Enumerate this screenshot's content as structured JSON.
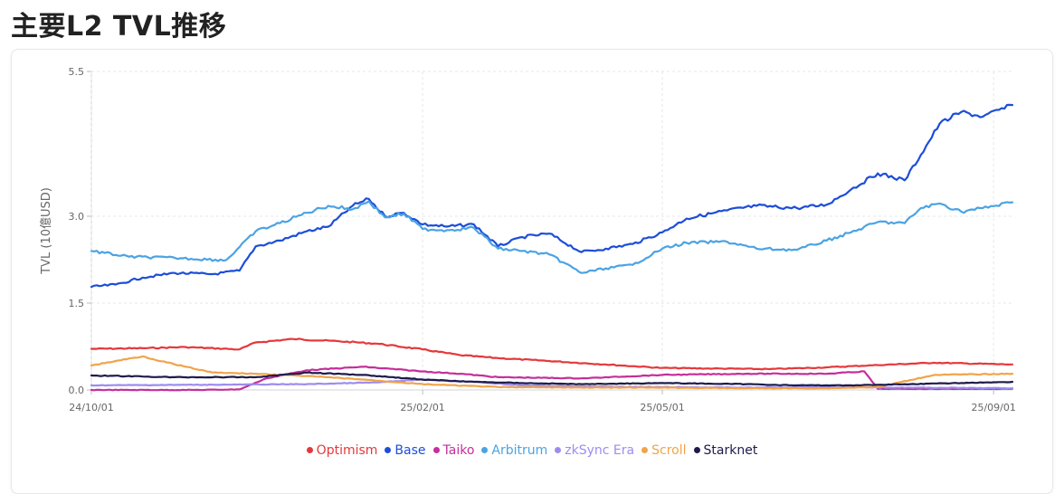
{
  "page": {
    "title": "主要L2 TVL推移"
  },
  "chart_data": {
    "type": "line",
    "title": "",
    "xlabel": "",
    "ylabel": "TVL (10億USD)",
    "xlim": [
      "2024-10-01",
      "2025-09-08"
    ],
    "ylim": [
      0,
      5.5
    ],
    "yticks": [
      0,
      1.5,
      3.0,
      5.5
    ],
    "ytick_labels": [
      "0.0",
      "1.5",
      "3.0",
      "5.5"
    ],
    "xticks": [
      "2024-10-01",
      "2025-02-01",
      "2025-05-01",
      "2025-09-01"
    ],
    "xtick_labels": [
      "24/10/01",
      "25/02/01",
      "25/05/01",
      "25/09/01"
    ],
    "grid": true,
    "legend_position": "bottom",
    "series": [
      {
        "name": "Optimism",
        "color": "#e5383b",
        "points": [
          [
            "2024-10-01",
            0.71
          ],
          [
            "2024-10-20",
            0.72
          ],
          [
            "2024-11-05",
            0.74
          ],
          [
            "2024-11-25",
            0.7
          ],
          [
            "2024-12-01",
            0.82
          ],
          [
            "2024-12-15",
            0.88
          ],
          [
            "2025-01-01",
            0.84
          ],
          [
            "2025-01-15",
            0.8
          ],
          [
            "2025-02-01",
            0.7
          ],
          [
            "2025-02-15",
            0.6
          ],
          [
            "2025-03-01",
            0.55
          ],
          [
            "2025-03-20",
            0.5
          ],
          [
            "2025-04-10",
            0.44
          ],
          [
            "2025-05-01",
            0.38
          ],
          [
            "2025-05-20",
            0.37
          ],
          [
            "2025-06-10",
            0.36
          ],
          [
            "2025-07-01",
            0.39
          ],
          [
            "2025-07-20",
            0.43
          ],
          [
            "2025-08-10",
            0.47
          ],
          [
            "2025-09-08",
            0.44
          ]
        ]
      },
      {
        "name": "Base",
        "color": "#1d4ed8",
        "points": [
          [
            "2024-10-01",
            1.78
          ],
          [
            "2024-10-10",
            1.82
          ],
          [
            "2024-10-20",
            1.94
          ],
          [
            "2024-11-01",
            2.02
          ],
          [
            "2024-11-15",
            2.0
          ],
          [
            "2024-11-25",
            2.06
          ],
          [
            "2024-12-01",
            2.48
          ],
          [
            "2024-12-10",
            2.58
          ],
          [
            "2024-12-20",
            2.74
          ],
          [
            "2024-12-28",
            2.82
          ],
          [
            "2025-01-06",
            3.18
          ],
          [
            "2025-01-12",
            3.3
          ],
          [
            "2025-01-18",
            3.0
          ],
          [
            "2025-01-25",
            3.06
          ],
          [
            "2025-02-01",
            2.86
          ],
          [
            "2025-02-10",
            2.82
          ],
          [
            "2025-02-20",
            2.86
          ],
          [
            "2025-03-01",
            2.48
          ],
          [
            "2025-03-10",
            2.64
          ],
          [
            "2025-03-20",
            2.7
          ],
          [
            "2025-04-01",
            2.38
          ],
          [
            "2025-04-10",
            2.44
          ],
          [
            "2025-04-20",
            2.52
          ],
          [
            "2025-05-01",
            2.72
          ],
          [
            "2025-05-10",
            2.96
          ],
          [
            "2025-05-25",
            3.1
          ],
          [
            "2025-06-05",
            3.18
          ],
          [
            "2025-06-20",
            3.14
          ],
          [
            "2025-07-01",
            3.2
          ],
          [
            "2025-07-10",
            3.46
          ],
          [
            "2025-07-20",
            3.74
          ],
          [
            "2025-07-30",
            3.62
          ],
          [
            "2025-08-05",
            4.06
          ],
          [
            "2025-08-12",
            4.6
          ],
          [
            "2025-08-20",
            4.8
          ],
          [
            "2025-08-28",
            4.72
          ],
          [
            "2025-09-08",
            4.92
          ]
        ]
      },
      {
        "name": "Taiko",
        "color": "#c42f9a",
        "points": [
          [
            "2024-10-01",
            0.0
          ],
          [
            "2024-11-10",
            0.0
          ],
          [
            "2024-11-25",
            0.01
          ],
          [
            "2024-12-05",
            0.2
          ],
          [
            "2024-12-20",
            0.34
          ],
          [
            "2025-01-10",
            0.4
          ],
          [
            "2025-02-01",
            0.32
          ],
          [
            "2025-02-15",
            0.28
          ],
          [
            "2025-03-01",
            0.22
          ],
          [
            "2025-04-01",
            0.2
          ],
          [
            "2025-05-01",
            0.26
          ],
          [
            "2025-06-01",
            0.28
          ],
          [
            "2025-07-01",
            0.28
          ],
          [
            "2025-07-15",
            0.32
          ],
          [
            "2025-07-20",
            0.02
          ],
          [
            "2025-09-08",
            0.02
          ]
        ]
      },
      {
        "name": "Arbitrum",
        "color": "#4ba3e3",
        "points": [
          [
            "2024-10-01",
            2.4
          ],
          [
            "2024-10-15",
            2.3
          ],
          [
            "2024-11-01",
            2.28
          ],
          [
            "2024-11-20",
            2.24
          ],
          [
            "2024-12-01",
            2.74
          ],
          [
            "2024-12-10",
            2.88
          ],
          [
            "2024-12-20",
            3.06
          ],
          [
            "2024-12-28",
            3.18
          ],
          [
            "2025-01-06",
            3.12
          ],
          [
            "2025-01-12",
            3.26
          ],
          [
            "2025-01-18",
            2.98
          ],
          [
            "2025-01-25",
            3.04
          ],
          [
            "2025-02-01",
            2.78
          ],
          [
            "2025-02-10",
            2.76
          ],
          [
            "2025-02-20",
            2.8
          ],
          [
            "2025-03-01",
            2.44
          ],
          [
            "2025-03-10",
            2.4
          ],
          [
            "2025-03-20",
            2.34
          ],
          [
            "2025-04-01",
            2.02
          ],
          [
            "2025-04-10",
            2.1
          ],
          [
            "2025-04-20",
            2.16
          ],
          [
            "2025-05-01",
            2.44
          ],
          [
            "2025-05-10",
            2.54
          ],
          [
            "2025-05-25",
            2.56
          ],
          [
            "2025-06-05",
            2.44
          ],
          [
            "2025-06-20",
            2.42
          ],
          [
            "2025-07-01",
            2.58
          ],
          [
            "2025-07-10",
            2.72
          ],
          [
            "2025-07-20",
            2.9
          ],
          [
            "2025-07-30",
            2.88
          ],
          [
            "2025-08-05",
            3.14
          ],
          [
            "2025-08-12",
            3.22
          ],
          [
            "2025-08-20",
            3.08
          ],
          [
            "2025-08-28",
            3.14
          ],
          [
            "2025-09-08",
            3.24
          ]
        ]
      },
      {
        "name": "zkSync Era",
        "color": "#9d8cf0",
        "points": [
          [
            "2024-10-01",
            0.08
          ],
          [
            "2024-11-15",
            0.09
          ],
          [
            "2024-12-20",
            0.1
          ],
          [
            "2025-01-15",
            0.13
          ],
          [
            "2025-02-01",
            0.18
          ],
          [
            "2025-02-20",
            0.14
          ],
          [
            "2025-03-10",
            0.08
          ],
          [
            "2025-04-01",
            0.06
          ],
          [
            "2025-05-01",
            0.05
          ],
          [
            "2025-06-01",
            0.04
          ],
          [
            "2025-07-01",
            0.05
          ],
          [
            "2025-08-01",
            0.04
          ],
          [
            "2025-09-08",
            0.03
          ]
        ]
      },
      {
        "name": "Scroll",
        "color": "#f0a44a",
        "points": [
          [
            "2024-10-01",
            0.42
          ],
          [
            "2024-10-10",
            0.5
          ],
          [
            "2024-10-20",
            0.58
          ],
          [
            "2024-11-01",
            0.44
          ],
          [
            "2024-11-15",
            0.3
          ],
          [
            "2024-12-01",
            0.28
          ],
          [
            "2024-12-20",
            0.24
          ],
          [
            "2025-01-10",
            0.18
          ],
          [
            "2025-02-01",
            0.1
          ],
          [
            "2025-03-01",
            0.05
          ],
          [
            "2025-04-01",
            0.04
          ],
          [
            "2025-05-01",
            0.04
          ],
          [
            "2025-06-01",
            0.03
          ],
          [
            "2025-07-01",
            0.03
          ],
          [
            "2025-07-20",
            0.05
          ],
          [
            "2025-08-10",
            0.26
          ],
          [
            "2025-08-25",
            0.27
          ],
          [
            "2025-09-08",
            0.28
          ]
        ]
      },
      {
        "name": "Starknet",
        "color": "#1e1b4b",
        "points": [
          [
            "2024-10-01",
            0.25
          ],
          [
            "2024-11-01",
            0.22
          ],
          [
            "2024-12-01",
            0.22
          ],
          [
            "2024-12-20",
            0.3
          ],
          [
            "2025-01-10",
            0.26
          ],
          [
            "2025-02-01",
            0.18
          ],
          [
            "2025-02-20",
            0.14
          ],
          [
            "2025-03-10",
            0.12
          ],
          [
            "2025-04-01",
            0.1
          ],
          [
            "2025-05-01",
            0.12
          ],
          [
            "2025-06-01",
            0.1
          ],
          [
            "2025-06-20",
            0.08
          ],
          [
            "2025-07-10",
            0.08
          ],
          [
            "2025-08-01",
            0.1
          ],
          [
            "2025-08-20",
            0.12
          ],
          [
            "2025-09-08",
            0.14
          ]
        ]
      }
    ]
  }
}
